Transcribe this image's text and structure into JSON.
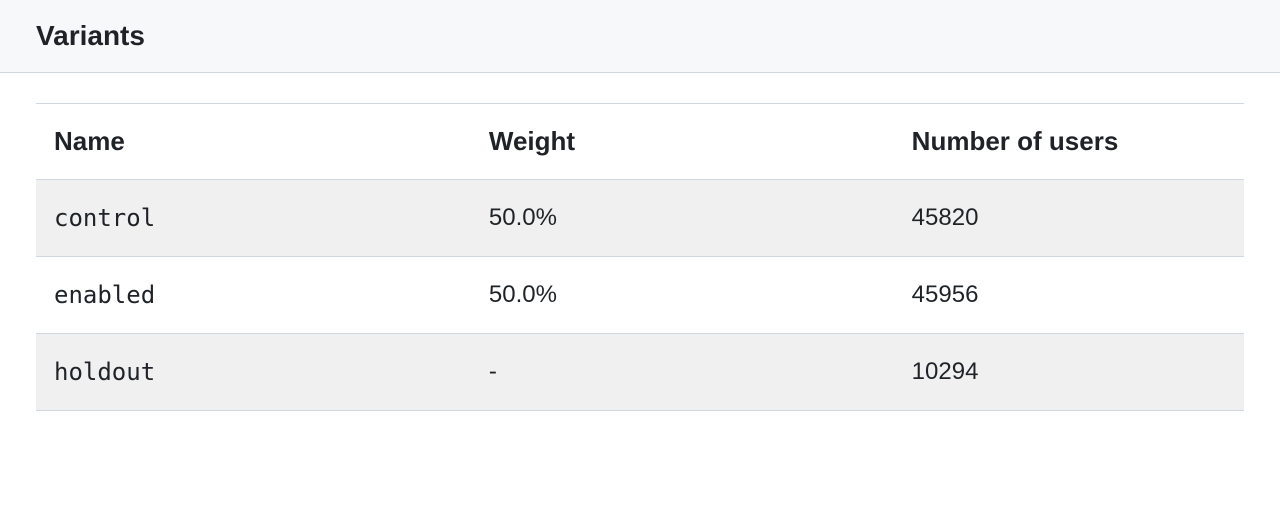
{
  "section": {
    "title": "Variants"
  },
  "table": {
    "type": "table",
    "columns": [
      {
        "key": "name",
        "label": "Name",
        "width_pct": 36,
        "align": "left",
        "cell_font": "mono"
      },
      {
        "key": "weight",
        "label": "Weight",
        "width_pct": 35,
        "align": "left",
        "cell_font": "sans"
      },
      {
        "key": "users",
        "label": "Number of users",
        "width_pct": 29,
        "align": "left",
        "cell_font": "sans"
      }
    ],
    "rows": [
      {
        "name": "control",
        "weight": "50.0%",
        "users": "45820"
      },
      {
        "name": "enabled",
        "weight": "50.0%",
        "users": "45956"
      },
      {
        "name": "holdout",
        "weight": "-",
        "users": "10294"
      }
    ],
    "header_fontsize": 26,
    "header_fontweight": 700,
    "cell_fontsize": 24,
    "text_color": "#1f2328",
    "border_color": "#d0d7de",
    "row_stripe_colors": [
      "#f1f0f0",
      "#ffffff"
    ],
    "section_header_bg": "#f6f8fa",
    "page_bg": "#ffffff"
  }
}
